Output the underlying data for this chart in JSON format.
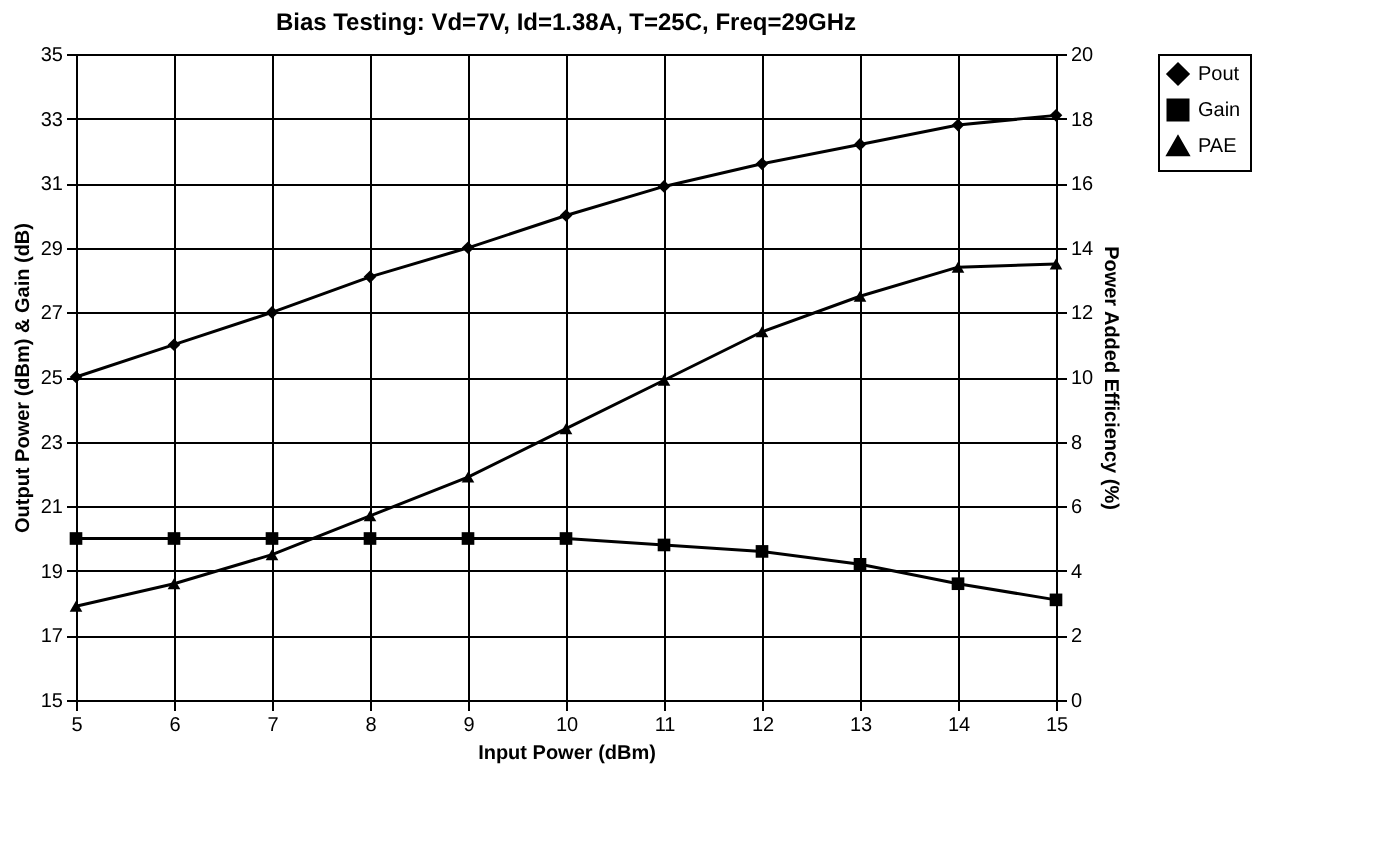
{
  "chart_data": {
    "type": "line",
    "title": "Bias Testing:  Vd=7V,  Id=1.38A,  T=25C,  Freq=29GHz",
    "xlabel": "Input Power (dBm)",
    "ylabel": "Output Power (dBm) & Gain (dB)",
    "y2label": "Power Added Efficiency (%)",
    "x": [
      5,
      6,
      7,
      8,
      9,
      10,
      11,
      12,
      13,
      14,
      15
    ],
    "series": [
      {
        "name": "Pout",
        "color": "#000000",
        "marker": "diamond",
        "values": [
          25,
          26,
          27,
          28.1,
          29,
          30,
          30.9,
          31.6,
          32.2,
          32.8,
          33.1
        ]
      },
      {
        "name": "Gain",
        "color": "#000000",
        "marker": "square",
        "values": [
          20,
          20,
          20,
          20,
          20,
          20,
          19.8,
          19.6,
          19.2,
          18.6,
          18.1
        ]
      },
      {
        "name": "PAE",
        "color": "#000000",
        "marker": "triangle",
        "axis": "y2",
        "values": [
          2.9,
          3.6,
          4.5,
          5.7,
          6.9,
          8.4,
          9.9,
          11.4,
          12.5,
          13.4,
          13.5
        ]
      }
    ],
    "xlim": [
      5,
      15
    ],
    "xticks": [
      5,
      6,
      7,
      8,
      9,
      10,
      11,
      12,
      13,
      14,
      15
    ],
    "ylim": [
      15,
      35
    ],
    "yticks": [
      15,
      17,
      19,
      21,
      23,
      25,
      27,
      29,
      31,
      33,
      35
    ],
    "y2lim": [
      0,
      20
    ],
    "y2ticks": [
      0,
      2,
      4,
      6,
      8,
      10,
      12,
      14,
      16,
      18,
      20
    ],
    "grid": true,
    "legend": "right",
    "line_style": "solid"
  }
}
